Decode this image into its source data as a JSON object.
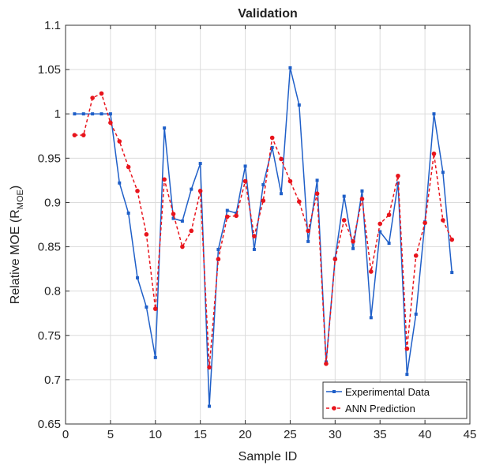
{
  "chart_data": {
    "type": "line",
    "title": "Validation",
    "xlabel": "Sample ID",
    "ylabel_main": "Relative MOE (R",
    "ylabel_sub": "MOE",
    "ylabel_end": ")",
    "xlim": [
      0,
      45
    ],
    "ylim": [
      0.65,
      1.1
    ],
    "xticks": [
      0,
      5,
      10,
      15,
      20,
      25,
      30,
      35,
      40,
      45
    ],
    "xtick_labels": [
      "0",
      "5",
      "10",
      "15",
      "20",
      "25",
      "30",
      "35",
      "40",
      "45"
    ],
    "yticks": [
      0.65,
      0.7,
      0.75,
      0.8,
      0.85,
      0.9,
      0.95,
      1.0,
      1.05,
      1.1
    ],
    "ytick_labels": [
      "0.65",
      "0.7",
      "0.75",
      "0.8",
      "0.85",
      "0.9",
      "0.95",
      "1",
      "1.05",
      "1.1"
    ],
    "grid": true,
    "legend_position": "bottom-right",
    "x": [
      1,
      2,
      3,
      4,
      5,
      6,
      7,
      8,
      9,
      10,
      11,
      12,
      13,
      14,
      15,
      16,
      17,
      18,
      19,
      20,
      21,
      22,
      23,
      24,
      25,
      26,
      27,
      28,
      29,
      30,
      31,
      32,
      33,
      34,
      35,
      36,
      37,
      38,
      39,
      40,
      41,
      42,
      43
    ],
    "series": [
      {
        "name": "Experimental Data",
        "color": "#1f5fc8",
        "style": "solid",
        "values": [
          1.0,
          1.0,
          1.0,
          1.0,
          1.0,
          0.922,
          0.888,
          0.815,
          0.782,
          0.725,
          0.984,
          0.882,
          0.879,
          0.915,
          0.944,
          0.67,
          0.847,
          0.891,
          0.888,
          0.941,
          0.847,
          0.92,
          0.962,
          0.91,
          1.052,
          1.01,
          0.856,
          0.925,
          0.72,
          0.837,
          0.907,
          0.848,
          0.913,
          0.77,
          0.867,
          0.854,
          0.922,
          0.706,
          0.774,
          0.878,
          1.0,
          0.934,
          0.821
        ]
      },
      {
        "name": "ANN Prediction",
        "color": "#e8141c",
        "style": "dashed",
        "values": [
          0.976,
          0.976,
          1.018,
          1.023,
          0.99,
          0.969,
          0.94,
          0.913,
          0.864,
          0.78,
          0.926,
          0.887,
          0.85,
          0.868,
          0.913,
          0.714,
          0.836,
          0.884,
          0.885,
          0.924,
          0.862,
          0.902,
          0.973,
          0.949,
          0.924,
          0.901,
          0.868,
          0.91,
          0.718,
          0.836,
          0.88,
          0.856,
          0.904,
          0.822,
          0.876,
          0.886,
          0.93,
          0.735,
          0.84,
          0.877,
          0.955,
          0.88,
          0.858
        ]
      }
    ]
  }
}
